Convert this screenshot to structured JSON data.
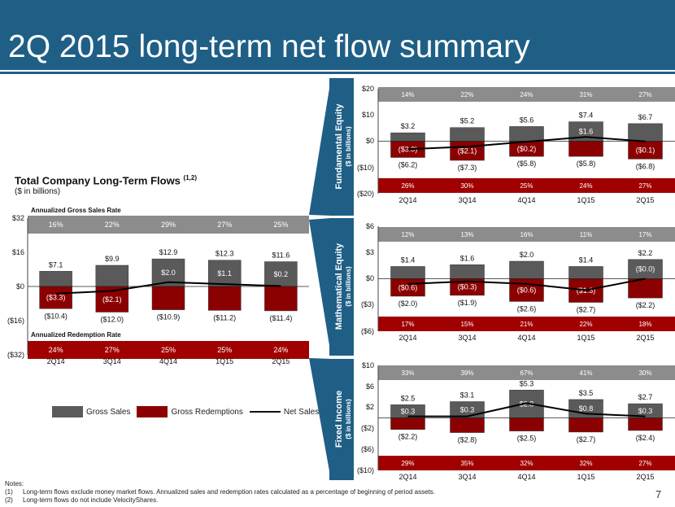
{
  "header": {
    "title": "2Q 2015 long-term net flow summary"
  },
  "main": {
    "title": "Total Company Long-Term Flows",
    "title_sup": "(1,2)",
    "subtitle": "($ in billions)"
  },
  "legend": {
    "gross_sales": "Gross Sales",
    "gross_redemptions": "Gross Redemptions",
    "net_sales": "Net Sales"
  },
  "notes": {
    "heading": "Notes:",
    "items": [
      {
        "num": "(1)",
        "text": "Long-term flows exclude money market flows. Annualized sales and redemption rates calculated as a percentage of beginning of period assets."
      },
      {
        "num": "(2)",
        "text": "Long-term flows do not include VelocityShares."
      }
    ]
  },
  "page_number": "7",
  "colors": {
    "header": "#1f5f86",
    "sales": "#5a5a5a",
    "redemptions": "#8b0000",
    "band_top": "#8c8c8c",
    "band_bottom": "#a00000"
  },
  "chart_data": [
    {
      "type": "bar",
      "name": "Total Company Long-Term Flows",
      "categories": [
        "2Q14",
        "3Q14",
        "4Q14",
        "1Q15",
        "2Q15"
      ],
      "y_ticks": [
        "$32",
        "$16",
        "$0",
        "($16)",
        "($32)"
      ],
      "ylim": [
        -32,
        32
      ],
      "band_top_label": "Annualized Gross Sales Rate",
      "band_bottom_label": "Annualized Redemption Rate",
      "band_top": [
        "16%",
        "22%",
        "29%",
        "27%",
        "25%"
      ],
      "band_bottom": [
        "24%",
        "27%",
        "25%",
        "25%",
        "24%"
      ],
      "gross_sales": [
        7.1,
        9.9,
        12.9,
        12.3,
        11.6
      ],
      "gross_sales_labels": [
        "$7.1",
        "$9.9",
        "$12.9",
        "$12.3",
        "$11.6"
      ],
      "gross_redemptions": [
        -10.4,
        -12.0,
        -10.9,
        -11.2,
        -11.4
      ],
      "gross_redemptions_labels": [
        "($10.4)",
        "($12.0)",
        "($10.9)",
        "($11.2)",
        "($11.4)"
      ],
      "net_sales": [
        -3.3,
        -2.1,
        2.0,
        1.1,
        0.2
      ],
      "net_sales_labels": [
        "($3.3)",
        "($2.1)",
        "$2.0",
        "$1.1",
        "$0.2"
      ]
    },
    {
      "type": "bar",
      "name": "Fundamental Equity",
      "side_title": "Fundamental Equity",
      "side_subtitle": "($ in billions)",
      "categories": [
        "2Q14",
        "3Q14",
        "4Q14",
        "1Q15",
        "2Q15"
      ],
      "y_ticks": [
        "$20",
        "$10",
        "$0",
        "($10)",
        "($20)"
      ],
      "ylim": [
        -20,
        20
      ],
      "band_top": [
        "14%",
        "22%",
        "24%",
        "31%",
        "27%"
      ],
      "band_bottom": [
        "26%",
        "30%",
        "25%",
        "24%",
        "27%"
      ],
      "gross_sales": [
        3.2,
        5.2,
        5.6,
        7.4,
        6.7
      ],
      "gross_sales_labels": [
        "$3.2",
        "$5.2",
        "$5.6",
        "$7.4",
        "$6.7"
      ],
      "gross_redemptions": [
        -6.2,
        -7.3,
        -5.8,
        -5.8,
        -6.8
      ],
      "gross_redemptions_labels": [
        "($6.2)",
        "($7.3)",
        "($5.8)",
        "($5.8)",
        "($6.8)"
      ],
      "net_sales": [
        -3.0,
        -2.1,
        -0.2,
        1.6,
        -0.1
      ],
      "net_sales_labels": [
        "($3.0)",
        "($2.1)",
        "($0.2)",
        "$1.6",
        "($0.1)"
      ]
    },
    {
      "type": "bar",
      "name": "Mathematical Equity",
      "side_title": "Mathematical Equity",
      "side_subtitle": "($ in billions)",
      "categories": [
        "2Q14",
        "3Q14",
        "4Q14",
        "1Q15",
        "2Q15"
      ],
      "y_ticks": [
        "$6",
        "$3",
        "$0",
        "($3)",
        "($6)"
      ],
      "ylim": [
        -6,
        6
      ],
      "band_top": [
        "12%",
        "13%",
        "16%",
        "11%",
        "17%"
      ],
      "band_bottom": [
        "17%",
        "15%",
        "21%",
        "22%",
        "18%"
      ],
      "gross_sales": [
        1.4,
        1.6,
        2.0,
        1.4,
        2.2
      ],
      "gross_sales_labels": [
        "$1.4",
        "$1.6",
        "$2.0",
        "$1.4",
        "$2.2"
      ],
      "gross_redemptions": [
        -2.0,
        -1.9,
        -2.6,
        -2.7,
        -2.2
      ],
      "gross_redemptions_labels": [
        "($2.0)",
        "($1.9)",
        "($2.6)",
        "($2.7)",
        "($2.2)"
      ],
      "net_sales": [
        -0.6,
        -0.3,
        -0.6,
        -1.3,
        0.0
      ],
      "net_sales_labels": [
        "($0.6)",
        "($0.3)",
        "($0.6)",
        "($1.3)",
        "($0.0)"
      ]
    },
    {
      "type": "bar",
      "name": "Fixed Income",
      "side_title": "Fixed Income",
      "side_subtitle": "($ in billions)",
      "categories": [
        "2Q14",
        "3Q14",
        "4Q14",
        "1Q15",
        "2Q15"
      ],
      "y_ticks": [
        "$10",
        "$6",
        "$2",
        "($2)",
        "($6)",
        "($10)"
      ],
      "ylim": [
        -10,
        10
      ],
      "band_top": [
        "33%",
        "39%",
        "67%",
        "41%",
        "30%"
      ],
      "band_bottom": [
        "29%",
        "35%",
        "32%",
        "32%",
        "27%"
      ],
      "gross_sales": [
        2.5,
        3.1,
        5.3,
        3.5,
        2.7
      ],
      "gross_sales_labels": [
        "$2.5",
        "$3.1",
        "$5.3",
        "$3.5",
        "$2.7"
      ],
      "gross_redemptions": [
        -2.2,
        -2.8,
        -2.5,
        -2.7,
        -2.4
      ],
      "gross_redemptions_labels": [
        "($2.2)",
        "($2.8)",
        "($2.5)",
        "($2.7)",
        "($2.4)"
      ],
      "net_sales": [
        0.3,
        0.3,
        2.8,
        0.8,
        0.3
      ],
      "net_sales_labels": [
        "$0.3",
        "$0.3",
        "$2.8",
        "$0.8",
        "$0.3"
      ]
    }
  ]
}
